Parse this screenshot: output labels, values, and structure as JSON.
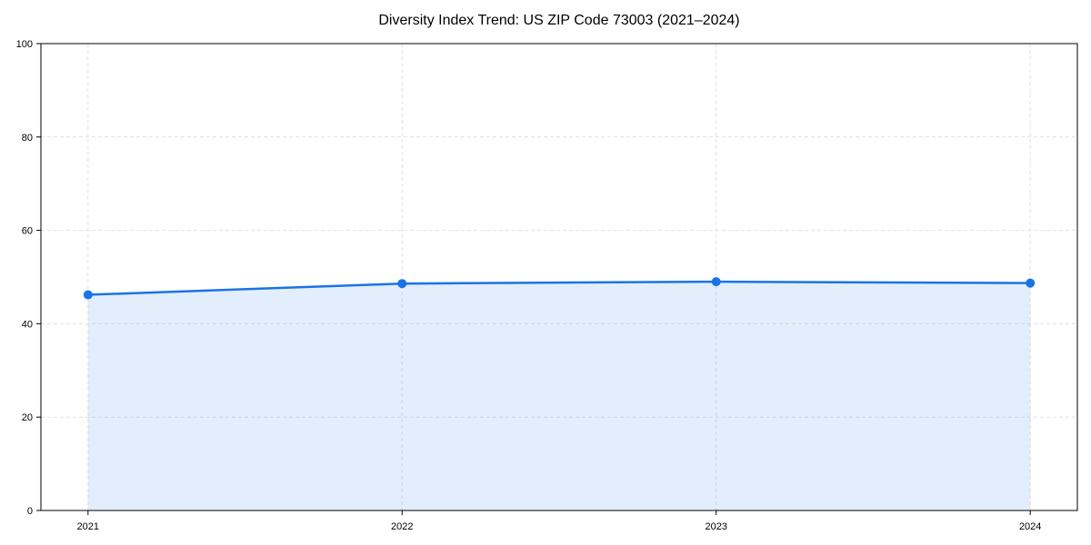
{
  "page": {
    "background": "#ffffff"
  },
  "chart_data": {
    "type": "line",
    "title": "Diversity Index Trend: US ZIP Code 73003 (2021–2024)",
    "x": [
      2021,
      2022,
      2023,
      2024
    ],
    "categories": [
      "2021",
      "2022",
      "2023",
      "2024"
    ],
    "series": [
      {
        "name": "Diversity Index",
        "values": [
          46.2,
          48.6,
          49.0,
          48.7
        ]
      }
    ],
    "xlabel": "",
    "ylabel": "",
    "ylim": [
      0,
      100
    ],
    "yticks": [
      0,
      20,
      40,
      60,
      80,
      100
    ],
    "xticks": [
      2021,
      2022,
      2023,
      2024
    ],
    "x_margin_fraction": 0.05,
    "grid": true,
    "grid_style": "dashed",
    "legend_position": "none",
    "area_fill": true,
    "markers": true,
    "style": {
      "line_color": "#1a73e8",
      "marker_color": "#1a73e8",
      "fill_color": "rgba(26,115,232,0.12)",
      "grid_color": "#e0e0e0",
      "axis_color": "#000000",
      "text_color": "#000000",
      "background": "#ffffff",
      "line_width": 2.5,
      "marker_radius": 5,
      "tick_font_size": 11,
      "title_font_size": 16
    }
  }
}
